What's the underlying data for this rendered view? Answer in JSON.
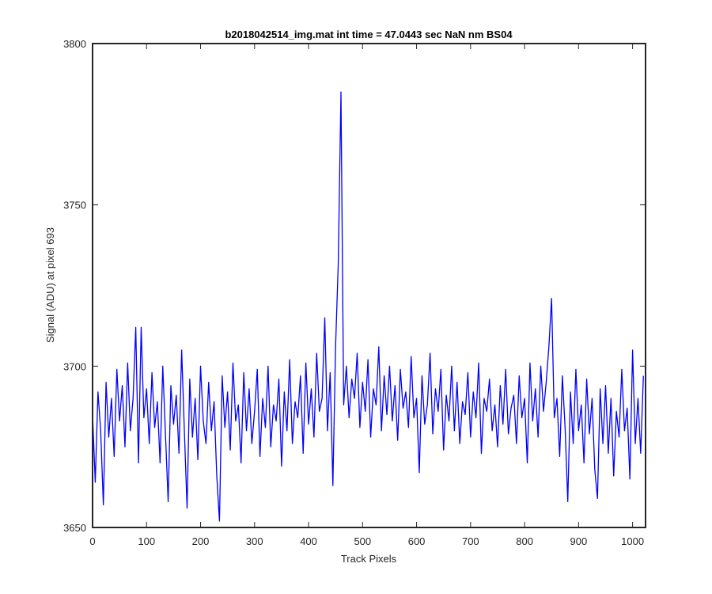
{
  "chart_data": {
    "type": "line",
    "title": "b2018042514_img.mat int time = 47.0443 sec  NaN nm BS04",
    "xlabel": "Track Pixels",
    "ylabel": "Signal (ADU) at pixel 693",
    "xlim": [
      0,
      1024
    ],
    "ylim": [
      3650,
      3800
    ],
    "xticks": [
      0,
      100,
      200,
      300,
      400,
      500,
      600,
      700,
      800,
      900,
      1000
    ],
    "yticks": [
      3650,
      3700,
      3750,
      3800
    ],
    "grid": false,
    "series": [
      {
        "color": "#0000ff",
        "x": [
          0,
          5,
          10,
          15,
          20,
          25,
          30,
          35,
          40,
          45,
          50,
          55,
          60,
          65,
          70,
          75,
          80,
          85,
          90,
          95,
          100,
          105,
          110,
          115,
          120,
          125,
          130,
          135,
          140,
          145,
          150,
          155,
          160,
          165,
          170,
          175,
          180,
          185,
          190,
          195,
          200,
          205,
          210,
          215,
          220,
          225,
          230,
          235,
          240,
          245,
          250,
          255,
          260,
          265,
          270,
          275,
          280,
          285,
          290,
          295,
          300,
          305,
          310,
          315,
          320,
          325,
          330,
          335,
          340,
          345,
          350,
          355,
          360,
          365,
          370,
          375,
          380,
          385,
          390,
          395,
          400,
          405,
          410,
          415,
          420,
          425,
          430,
          435,
          440,
          445,
          450,
          455,
          460,
          465,
          470,
          475,
          480,
          485,
          490,
          495,
          500,
          505,
          510,
          515,
          520,
          525,
          530,
          535,
          540,
          545,
          550,
          555,
          560,
          565,
          570,
          575,
          580,
          585,
          590,
          595,
          600,
          605,
          610,
          615,
          620,
          625,
          630,
          635,
          640,
          645,
          650,
          655,
          660,
          665,
          670,
          675,
          680,
          685,
          690,
          695,
          700,
          705,
          710,
          715,
          720,
          725,
          730,
          735,
          740,
          745,
          750,
          755,
          760,
          765,
          770,
          775,
          780,
          785,
          790,
          795,
          800,
          805,
          810,
          815,
          820,
          825,
          830,
          835,
          840,
          845,
          850,
          855,
          860,
          865,
          870,
          875,
          880,
          885,
          890,
          895,
          900,
          905,
          910,
          915,
          920,
          925,
          930,
          935,
          940,
          945,
          950,
          955,
          960,
          965,
          970,
          975,
          980,
          985,
          990,
          995,
          1000,
          1005,
          1010,
          1015,
          1020
        ],
        "values": [
          3685,
          3664,
          3692,
          3680,
          3657,
          3695,
          3678,
          3690,
          3672,
          3699,
          3683,
          3694,
          3675,
          3701,
          3680,
          3690,
          3712,
          3670,
          3712,
          3684,
          3693,
          3676,
          3698,
          3681,
          3689,
          3670,
          3700,
          3679,
          3658,
          3694,
          3682,
          3691,
          3673,
          3705,
          3680,
          3656,
          3696,
          3678,
          3690,
          3671,
          3700,
          3683,
          3676,
          3695,
          3680,
          3689,
          3666,
          3652,
          3697,
          3681,
          3692,
          3674,
          3701,
          3683,
          3688,
          3670,
          3698,
          3680,
          3693,
          3676,
          3686,
          3699,
          3672,
          3690,
          3681,
          3700,
          3675,
          3688,
          3683,
          3696,
          3669,
          3692,
          3680,
          3702,
          3676,
          3689,
          3684,
          3697,
          3673,
          3701,
          3682,
          3693,
          3678,
          3704,
          3686,
          3690,
          3715,
          3680,
          3698,
          3663,
          3706,
          3732,
          3785,
          3688,
          3700,
          3684,
          3696,
          3690,
          3704,
          3681,
          3695,
          3686,
          3702,
          3678,
          3693,
          3688,
          3706,
          3680,
          3697,
          3685,
          3700,
          3683,
          3694,
          3677,
          3699,
          3687,
          3692,
          3681,
          3703,
          3684,
          3690,
          3667,
          3697,
          3682,
          3688,
          3704,
          3679,
          3693,
          3686,
          3699,
          3674,
          3691,
          3683,
          3700,
          3680,
          3695,
          3676,
          3689,
          3685,
          3698,
          3678,
          3692,
          3684,
          3701,
          3673,
          3690,
          3686,
          3696,
          3680,
          3688,
          3675,
          3694,
          3682,
          3699,
          3679,
          3687,
          3691,
          3676,
          3697,
          3684,
          3690,
          3670,
          3701,
          3683,
          3693,
          3678,
          3700,
          3686,
          3695,
          3706,
          3721,
          3684,
          3690,
          3672,
          3697,
          3681,
          3658,
          3692,
          3676,
          3699,
          3680,
          3688,
          3670,
          3696,
          3679,
          3690,
          3668,
          3659,
          3693,
          3676,
          3694,
          3673,
          3690,
          3666,
          3686,
          3678,
          3699,
          3680,
          3687,
          3665,
          3705,
          3676,
          3690,
          3673,
          3697
        ]
      }
    ]
  }
}
